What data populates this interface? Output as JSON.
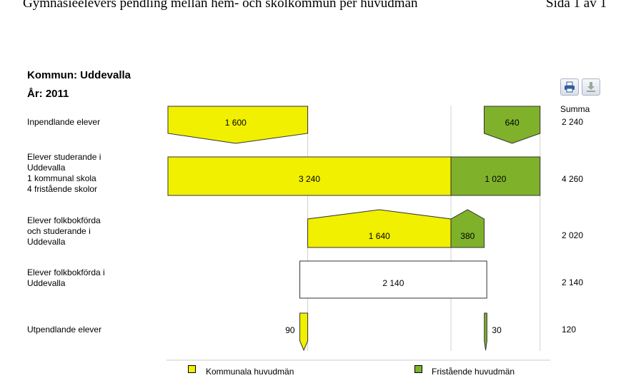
{
  "header": {
    "title": "Gymnasieelevers pendling mellan hem- och skolkommun per huvudman",
    "page": "Sida 1 av 1"
  },
  "kommun_label": "Kommun: Uddevalla",
  "year_label": "År: 2011",
  "toolbar": {
    "print_icon": "print-icon",
    "download_icon": "download-icon"
  },
  "summa_header": "Summa",
  "colors": {
    "kommunal": "#f0f000",
    "fristaende": "#7fb22a",
    "outline": "#333333",
    "grid": "#d0d0d0"
  },
  "rows": [
    {
      "label": "Inpendlande elever",
      "summa": "2 240"
    },
    {
      "label": "Elever studerande i\nUddevalla\n  1 kommunal skola\n  4 fristående skolor",
      "summa": "4 260"
    },
    {
      "label": "Elever folkbokförda\noch studerande i\nUddevalla",
      "summa": "2 020"
    },
    {
      "label": "Elever folkbokförda i\nUddevalla",
      "summa": "2 140"
    },
    {
      "label": "Utpendlande elever",
      "summa": "120"
    }
  ],
  "chart_data": {
    "type": "bar",
    "unit": "elever",
    "series": [
      {
        "name": "Kommunala huvudmän",
        "values": [
          1600,
          3240,
          1640,
          null,
          90
        ]
      },
      {
        "name": "Fristående huvudmän",
        "values": [
          640,
          1020,
          380,
          null,
          30
        ]
      }
    ],
    "total_value": 2140,
    "labels": {
      "inpend_k": "1 600",
      "inpend_f": "640",
      "stud_k": "3 240",
      "stud_f": "1 020",
      "folk_k": "1 640",
      "folk_f": "380",
      "total": "2 140",
      "ut_k": "90",
      "ut_f": "30"
    },
    "legend": [
      "Kommunala huvudmän",
      "Fristående huvudmän"
    ]
  }
}
